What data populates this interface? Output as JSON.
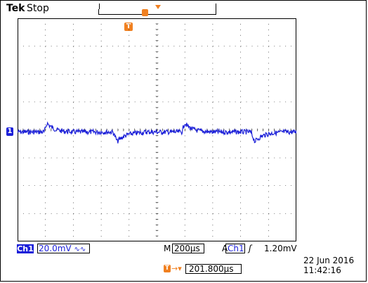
{
  "header": {
    "brand": "Tek",
    "acquisition_state": "Stop"
  },
  "markers": {
    "trigger_position_label": "T",
    "trigger_marker_label": "T",
    "channel_ground_label": "1"
  },
  "channel": {
    "badge": "Ch1",
    "scale": "20.0mV",
    "bandwidth_symbol": "∿∿"
  },
  "timebase": {
    "mode_label": "M",
    "value": "200µs"
  },
  "trigger": {
    "mode_label": "A",
    "source": "Ch1",
    "slope_symbol": "ʃ",
    "level": "1.20mV"
  },
  "horizontal_position": {
    "icon_label": "T",
    "arrow": "→▾",
    "value": "201.800µs"
  },
  "timestamp": {
    "date": "22 Jun  2016",
    "time": "11:42:16"
  },
  "colors": {
    "trace": "#1c20d9",
    "marker": "#f08020",
    "grid": "#000000"
  }
}
